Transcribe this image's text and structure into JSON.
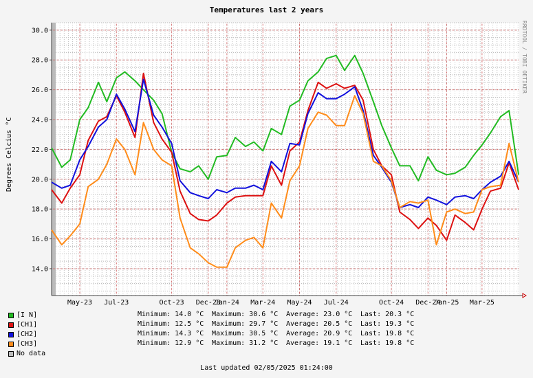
{
  "chart_data": {
    "type": "line",
    "title": "Temperatures last 2 years",
    "ylabel": "Degrees Celcius   °C",
    "credit": "RRDTOOL / TOBI OETIKER",
    "ylim": [
      12.2,
      30.5
    ],
    "yticks": [
      "30.0",
      "28.0",
      "26.0",
      "24.0",
      "22.0",
      "20.0",
      "18.0",
      "16.0",
      "14.0"
    ],
    "ytick_values": [
      30,
      28,
      26,
      24,
      22,
      20,
      18,
      16,
      14
    ],
    "x_tick_labels": [
      "May-23",
      "Jul-23",
      "Oct-23",
      "Dec-23",
      "Jan-24",
      "Mar-24",
      "May-24",
      "Jul-24",
      "Oct-24",
      "Dec-24",
      "Jan-25",
      "Mar-25"
    ],
    "x_start": "2023-03-15",
    "x_end": "2025-05-02",
    "x_tick_dates": [
      "2023-05-01",
      "2023-07-01",
      "2023-10-01",
      "2023-12-01",
      "2024-01-01",
      "2024-03-01",
      "2024-05-01",
      "2024-07-01",
      "2024-10-01",
      "2024-12-01",
      "2025-01-01",
      "2025-03-01"
    ],
    "x": [
      "2023-03-15",
      "2023-04-01",
      "2023-04-15",
      "2023-05-01",
      "2023-05-15",
      "2023-06-01",
      "2023-06-15",
      "2023-07-01",
      "2023-07-15",
      "2023-08-01",
      "2023-08-15",
      "2023-09-01",
      "2023-09-15",
      "2023-10-01",
      "2023-10-15",
      "2023-11-01",
      "2023-11-15",
      "2023-12-01",
      "2023-12-15",
      "2024-01-01",
      "2024-01-15",
      "2024-02-01",
      "2024-02-15",
      "2024-03-01",
      "2024-03-15",
      "2024-04-01",
      "2024-04-15",
      "2024-05-01",
      "2024-05-15",
      "2024-06-01",
      "2024-06-15",
      "2024-07-01",
      "2024-07-15",
      "2024-08-01",
      "2024-08-15",
      "2024-09-01",
      "2024-09-15",
      "2024-10-01",
      "2024-10-15",
      "2024-11-01",
      "2024-11-15",
      "2024-12-01",
      "2024-12-15",
      "2025-01-01",
      "2025-01-15",
      "2025-02-01",
      "2025-02-15",
      "2025-03-01",
      "2025-03-15",
      "2025-04-01",
      "2025-04-15",
      "2025-05-01"
    ],
    "series": [
      {
        "name": "[I N]",
        "color": "#22bb22",
        "values": [
          22.1,
          20.8,
          21.3,
          24.0,
          24.8,
          26.5,
          25.2,
          26.8,
          27.2,
          26.6,
          26.0,
          25.3,
          24.4,
          21.8,
          20.7,
          20.5,
          20.9,
          20.0,
          21.5,
          21.6,
          22.8,
          22.2,
          22.5,
          21.9,
          23.4,
          23.0,
          24.9,
          25.3,
          26.6,
          27.2,
          28.1,
          28.3,
          27.3,
          28.3,
          27.1,
          25.2,
          23.6,
          22.1,
          20.9,
          20.9,
          19.9,
          21.5,
          20.6,
          20.3,
          20.4,
          20.8,
          21.6,
          22.3,
          23.1,
          24.2,
          24.6,
          20.3
        ]
      },
      {
        "name": "[CH1]",
        "color": "#dd1111",
        "values": [
          19.3,
          18.4,
          19.4,
          20.3,
          22.6,
          23.9,
          24.2,
          25.6,
          24.5,
          22.8,
          27.1,
          23.8,
          22.7,
          21.8,
          19.2,
          17.7,
          17.3,
          17.2,
          17.6,
          18.4,
          18.8,
          18.9,
          18.9,
          18.9,
          20.9,
          19.6,
          21.9,
          22.5,
          24.6,
          26.5,
          26.1,
          26.4,
          26.1,
          26.3,
          25.3,
          22.0,
          20.9,
          20.3,
          17.8,
          17.3,
          16.7,
          17.4,
          16.9,
          15.9,
          17.6,
          17.1,
          16.6,
          18.0,
          19.2,
          19.4,
          21.1,
          19.3
        ]
      },
      {
        "name": "[CH2]",
        "color": "#1111dd",
        "values": [
          19.8,
          19.4,
          19.6,
          21.3,
          22.2,
          23.5,
          24.0,
          25.7,
          24.7,
          23.2,
          26.7,
          24.3,
          23.5,
          22.4,
          19.9,
          19.1,
          18.9,
          18.7,
          19.3,
          19.1,
          19.4,
          19.4,
          19.6,
          19.3,
          21.2,
          20.5,
          22.4,
          22.3,
          24.4,
          25.8,
          25.4,
          25.4,
          25.7,
          26.2,
          24.6,
          21.6,
          20.8,
          19.8,
          18.1,
          18.3,
          18.1,
          18.8,
          18.6,
          18.3,
          18.8,
          18.9,
          18.7,
          19.3,
          19.8,
          20.2,
          21.2,
          19.8
        ]
      },
      {
        "name": "[CH3]",
        "color": "#ff8c1a",
        "values": [
          16.6,
          15.6,
          16.2,
          17.0,
          19.5,
          20.0,
          21.0,
          22.7,
          22.0,
          20.3,
          23.8,
          22.0,
          21.3,
          20.9,
          17.4,
          15.4,
          15.0,
          14.4,
          14.1,
          14.1,
          15.4,
          15.9,
          16.1,
          15.4,
          18.4,
          17.4,
          19.9,
          20.9,
          23.4,
          24.5,
          24.3,
          23.6,
          23.6,
          25.6,
          24.4,
          21.2,
          20.9,
          19.9,
          18.1,
          18.5,
          18.4,
          18.6,
          15.6,
          17.8,
          18.0,
          17.7,
          17.8,
          19.3,
          19.5,
          19.6,
          22.4,
          19.8
        ]
      }
    ]
  },
  "legend": [
    {
      "label": "[I N]",
      "color": "#22bb22"
    },
    {
      "label": "[CH1]",
      "color": "#dd1111"
    },
    {
      "label": "[CH2]",
      "color": "#1111dd"
    },
    {
      "label": "[CH3]",
      "color": "#ff8c1a"
    },
    {
      "label": "No data",
      "color": "#bbbbbb"
    }
  ],
  "stats": [
    {
      "min": "Minimum: 14.0 °C",
      "max": "Maximum: 30.6 °C",
      "avg": "Average: 23.0 °C",
      "last": "Last: 20.3 °C"
    },
    {
      "min": "Minimum: 12.5 °C",
      "max": "Maximum: 29.7 °C",
      "avg": "Average: 20.5 °C",
      "last": "Last: 19.3 °C"
    },
    {
      "min": "Minimum: 14.3 °C",
      "max": "Maximum: 30.5 °C",
      "avg": "Average: 20.9 °C",
      "last": "Last: 19.8 °C"
    },
    {
      "min": "Minimum: 12.9 °C",
      "max": "Maximum: 31.2 °C",
      "avg": "Average: 19.1 °C",
      "last": "Last: 19.8 °C"
    }
  ],
  "footer": "Last updated 02/05/2025 01:24:00"
}
